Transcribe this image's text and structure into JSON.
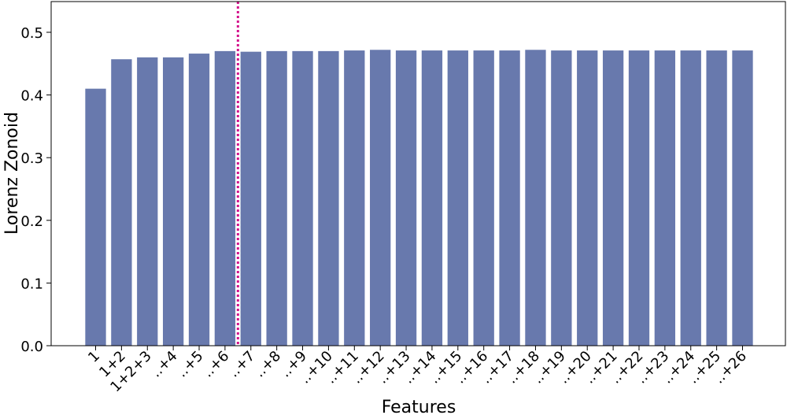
{
  "chart_data": {
    "type": "bar",
    "x_label": "Features",
    "y_label": "Lorenz Zonoid",
    "categories": [
      "1",
      "1+2",
      "1+2+3",
      "..+4",
      "..+5",
      "..+6",
      "..+7",
      "..+8",
      "..+9",
      "..+10",
      "..+11",
      "..+12",
      "..+13",
      "..+14",
      "..+15",
      "..+16",
      "..+17",
      "..+18",
      "..+19",
      "..+20",
      "..+21",
      "..+22",
      "..+23",
      "..+24",
      "..+25",
      "..+26"
    ],
    "values": [
      0.41,
      0.457,
      0.46,
      0.46,
      0.466,
      0.47,
      0.469,
      0.47,
      0.47,
      0.47,
      0.471,
      0.472,
      0.471,
      0.471,
      0.471,
      0.471,
      0.471,
      0.472,
      0.471,
      0.471,
      0.471,
      0.471,
      0.471,
      0.471,
      0.471,
      0.471
    ],
    "color": "#6879ad",
    "ylim": [
      0,
      0.549
    ],
    "yticks": [
      {
        "value": 0,
        "label": "0.0"
      },
      0.1,
      0.2,
      0.3,
      0.4,
      0.5
    ],
    "vline": {
      "x": 5.5,
      "color": "#d4148c"
    }
  }
}
